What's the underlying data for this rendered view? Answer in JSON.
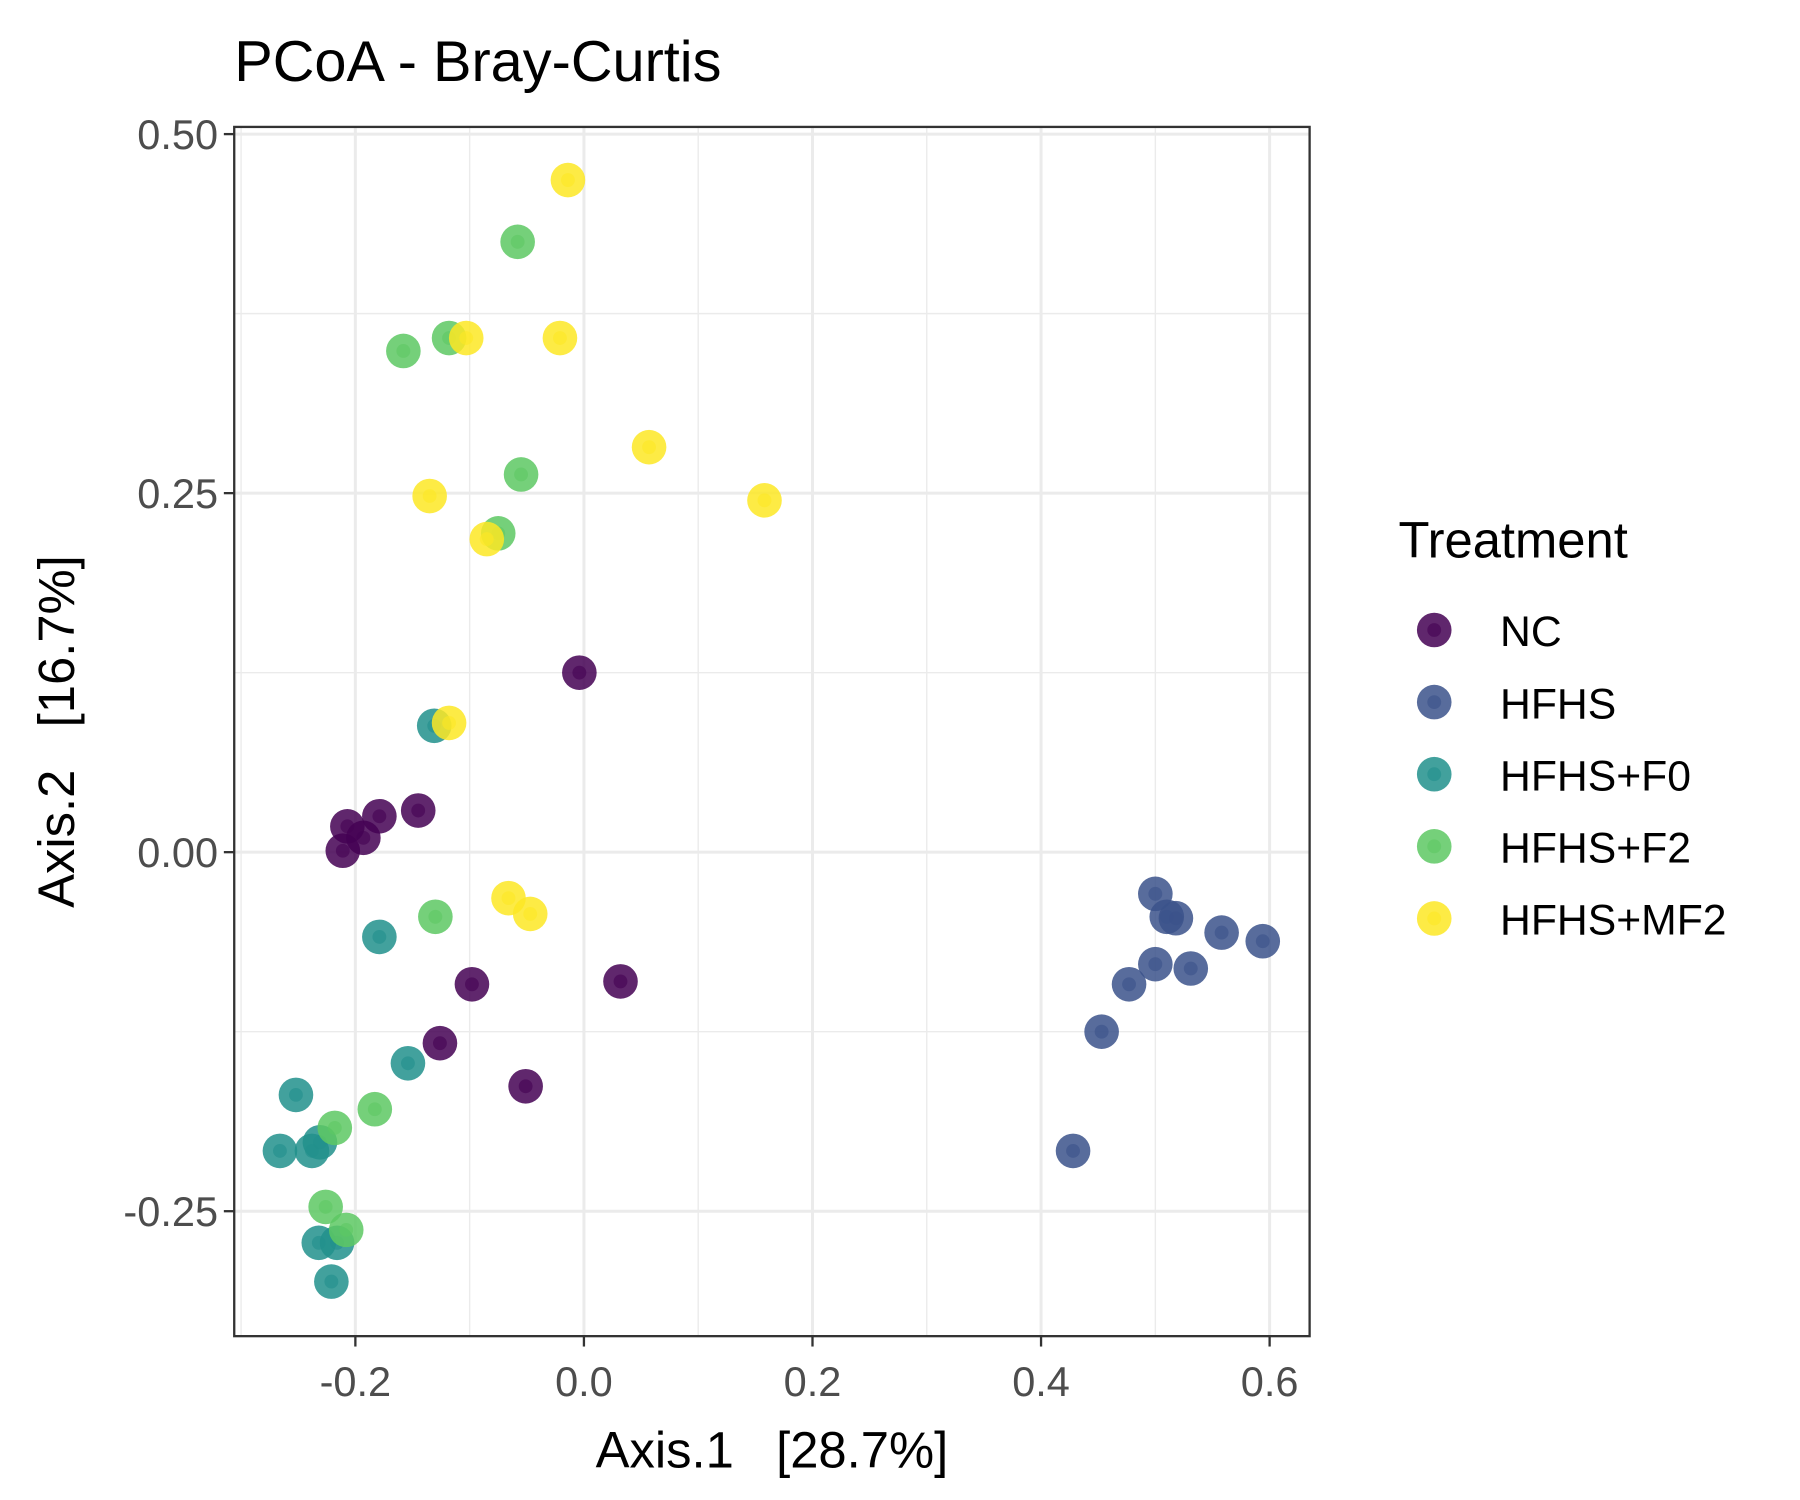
{
  "chart_data": {
    "type": "scatter",
    "title": "PCoA - Bray-Curtis",
    "xlabel": "Axis.1   [28.7%]",
    "ylabel": "Axis.2   [16.7%]",
    "xlim": [
      -0.306,
      0.635
    ],
    "ylim": [
      -0.337,
      0.505
    ],
    "xticks": [
      -0.2,
      0.0,
      0.2,
      0.4,
      0.6
    ],
    "xtick_labels": [
      "-0.2",
      "0.0",
      "0.2",
      "0.4",
      "0.6"
    ],
    "yticks": [
      -0.25,
      0.0,
      0.25,
      0.5
    ],
    "ytick_labels": [
      "-0.25",
      "0.00",
      "0.25",
      "0.50"
    ],
    "grid": true,
    "legend": {
      "title": "Treatment",
      "placement": "right"
    },
    "series": [
      {
        "name": "NC",
        "color": "#440154",
        "points": [
          [
            -0.004,
            0.125
          ],
          [
            -0.145,
            0.029
          ],
          [
            -0.179,
            0.025
          ],
          [
            -0.207,
            0.018
          ],
          [
            -0.193,
            0.01
          ],
          [
            -0.211,
            0.001
          ],
          [
            -0.098,
            -0.092
          ],
          [
            0.032,
            -0.09
          ],
          [
            -0.126,
            -0.133
          ],
          [
            -0.051,
            -0.163
          ]
        ]
      },
      {
        "name": "HFHS",
        "color": "#3B528B",
        "points": [
          [
            0.5,
            -0.029
          ],
          [
            0.51,
            -0.045
          ],
          [
            0.518,
            -0.046
          ],
          [
            0.558,
            -0.056
          ],
          [
            0.594,
            -0.062
          ],
          [
            0.5,
            -0.078
          ],
          [
            0.477,
            -0.092
          ],
          [
            0.531,
            -0.081
          ],
          [
            0.453,
            -0.125
          ],
          [
            0.428,
            -0.208
          ]
        ]
      },
      {
        "name": "HFHS+F0",
        "color": "#21908C",
        "points": [
          [
            -0.131,
            0.088
          ],
          [
            -0.179,
            -0.059
          ],
          [
            -0.154,
            -0.147
          ],
          [
            -0.252,
            -0.169
          ],
          [
            -0.266,
            -0.208
          ],
          [
            -0.238,
            -0.208
          ],
          [
            -0.231,
            -0.202
          ],
          [
            -0.232,
            -0.272
          ],
          [
            -0.216,
            -0.272
          ],
          [
            -0.221,
            -0.299
          ]
        ]
      },
      {
        "name": "HFHS+F2",
        "color": "#5DC863",
        "points": [
          [
            -0.058,
            0.425
          ],
          [
            -0.158,
            0.349
          ],
          [
            -0.118,
            0.358
          ],
          [
            -0.055,
            0.263
          ],
          [
            -0.075,
            0.222
          ],
          [
            -0.13,
            -0.045
          ],
          [
            -0.183,
            -0.179
          ],
          [
            -0.218,
            -0.192
          ],
          [
            -0.226,
            -0.247
          ],
          [
            -0.208,
            -0.263
          ]
        ]
      },
      {
        "name": "HFHS+MF2",
        "color": "#FDE725",
        "points": [
          [
            -0.014,
            0.468
          ],
          [
            -0.103,
            0.358
          ],
          [
            -0.021,
            0.358
          ],
          [
            0.057,
            0.282
          ],
          [
            0.158,
            0.245
          ],
          [
            -0.135,
            0.248
          ],
          [
            -0.085,
            0.218
          ],
          [
            -0.118,
            0.09
          ],
          [
            -0.066,
            -0.032
          ],
          [
            -0.047,
            -0.043
          ]
        ]
      }
    ]
  }
}
